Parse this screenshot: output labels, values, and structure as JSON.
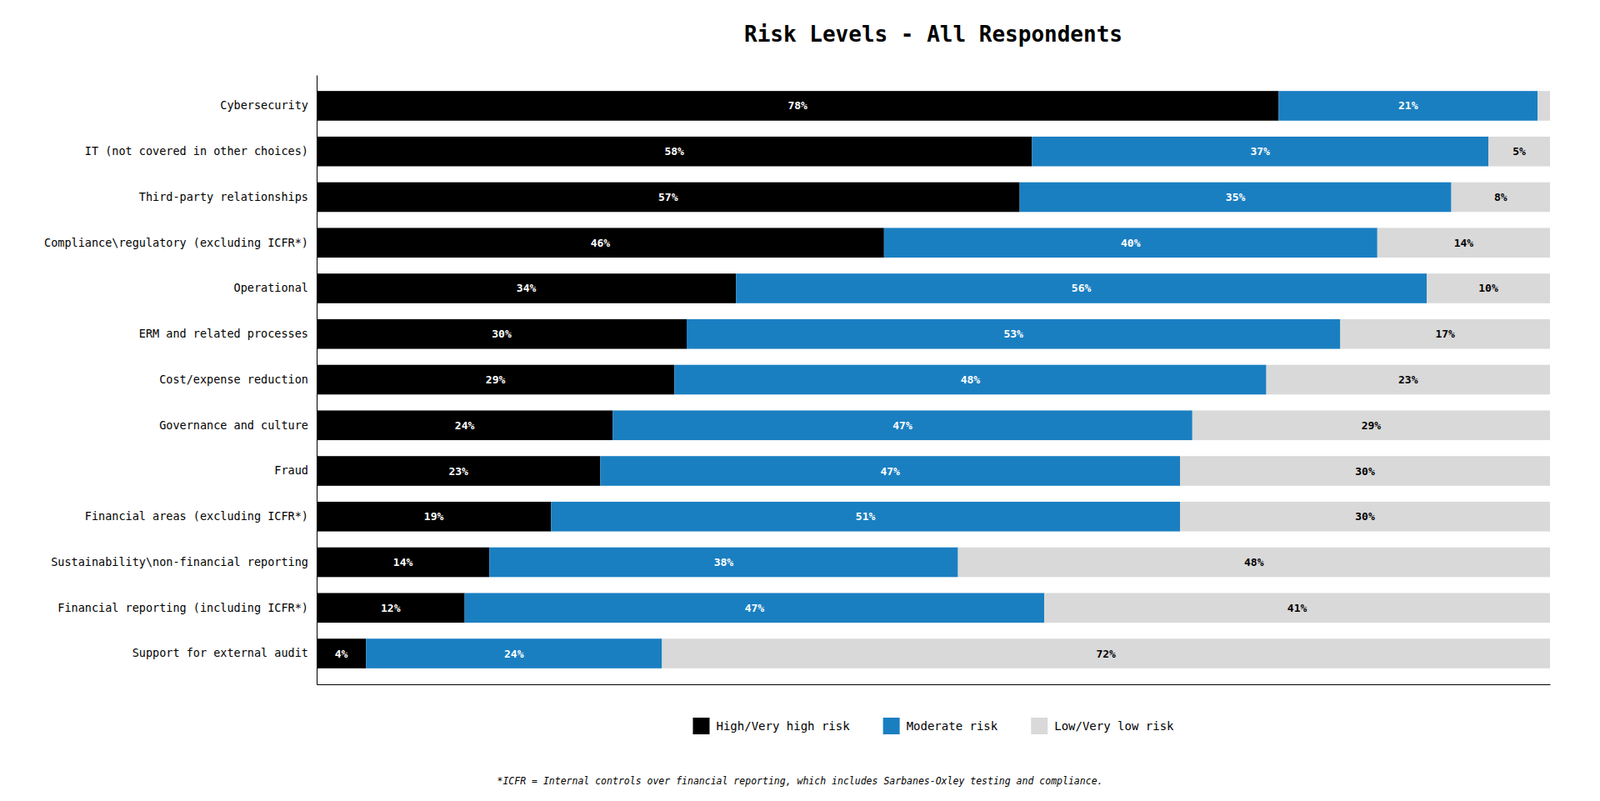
{
  "chart_data": {
    "type": "bar",
    "orientation": "horizontal",
    "stacked": true,
    "title": "Risk Levels - All Respondents",
    "footnote": "*ICFR = Internal controls over financial reporting, which includes Sarbanes-Oxley testing and compliance.",
    "categories": [
      "Cybersecurity",
      "IT (not covered in other choices)",
      "Third-party relationships",
      "Compliance\\regulatory (excluding ICFR*)",
      "Operational",
      "ERM and related processes",
      "Cost/expense reduction",
      "Governance and culture",
      "Fraud",
      "Financial areas (excluding ICFR*)",
      "Sustainability\\non-financial reporting",
      "Financial reporting (including ICFR*)",
      "Support for external audit"
    ],
    "series": [
      {
        "name": "High/Very high risk",
        "color": "#000000",
        "values": [
          78,
          58,
          57,
          46,
          34,
          30,
          29,
          24,
          23,
          19,
          14,
          12,
          4
        ],
        "value_labels": [
          "78%",
          "58%",
          "57%",
          "46%",
          "34%",
          "30%",
          "29%",
          "24%",
          "23%",
          "19%",
          "14%",
          "12%",
          "4%"
        ]
      },
      {
        "name": "Moderate risk",
        "color": "#1a7fc1",
        "values": [
          21,
          37,
          35,
          40,
          56,
          53,
          48,
          47,
          47,
          51,
          38,
          47,
          24
        ],
        "value_labels": [
          "21%",
          "37%",
          "35%",
          "40%",
          "56%",
          "53%",
          "48%",
          "47%",
          "47%",
          "51%",
          "38%",
          "47%",
          "24%"
        ]
      },
      {
        "name": "Low/Very low risk",
        "color": "#d9d9d9",
        "values": [
          1,
          5,
          8,
          14,
          10,
          17,
          23,
          29,
          30,
          30,
          48,
          41,
          72
        ],
        "value_labels": [
          null,
          "5%",
          "8%",
          "14%",
          "10%",
          "17%",
          "23%",
          "29%",
          "30%",
          "30%",
          "48%",
          "41%",
          "72%"
        ]
      }
    ],
    "xlim": [
      0,
      100
    ],
    "tick_labels": "y",
    "grid": false,
    "legend": "bottom",
    "data_labels": true
  }
}
